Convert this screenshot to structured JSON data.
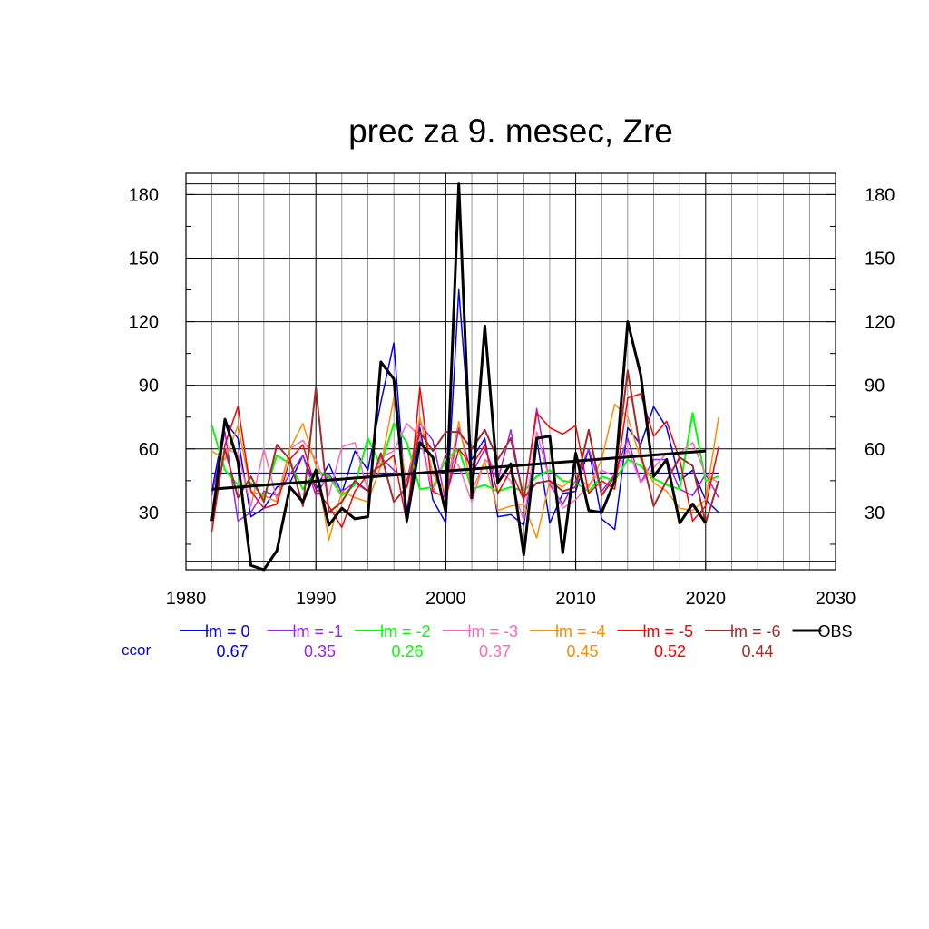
{
  "chart_data": {
    "type": "line",
    "title": "prec za 9. mesec, Zre",
    "xlabel": "",
    "ylabel": "",
    "xlim": [
      1980,
      2030
    ],
    "ylim": [
      3,
      190
    ],
    "x_ticks": [
      1980,
      1990,
      2000,
      2010,
      2020,
      2030
    ],
    "y_ticks": [
      30,
      60,
      90,
      120,
      150,
      180
    ],
    "grid": true,
    "legend_position": "bottom",
    "ccor_label": "ccor",
    "x": [
      1982,
      1983,
      1984,
      1985,
      1986,
      1987,
      1988,
      1989,
      1990,
      1991,
      1992,
      1993,
      1994,
      1995,
      1996,
      1997,
      1998,
      1999,
      2000,
      2001,
      2002,
      2003,
      2004,
      2005,
      2006,
      2007,
      2008,
      2009,
      2010,
      2011,
      2012,
      2013,
      2014,
      2015,
      2016,
      2017,
      2018,
      2019,
      2020,
      2021
    ],
    "series": [
      {
        "name": "lm = 0",
        "ccor": "0.67",
        "color": "#0000ff",
        "width": 1.5,
        "values": [
          40,
          73,
          65,
          28,
          32,
          42,
          44,
          57,
          41,
          53,
          39,
          59,
          50,
          82,
          110,
          30,
          70,
          36,
          25,
          135,
          55,
          65,
          28,
          29,
          24,
          65,
          25,
          39,
          40,
          60,
          27,
          22,
          70,
          62,
          80,
          70,
          45,
          50,
          36,
          30
        ],
        "baseline": {
          "x": [
            1982,
            2021
          ],
          "y": [
            48.5,
            48.5
          ]
        }
      },
      {
        "name": "lm = -1",
        "ccor": "0.35",
        "color": "#a020f0",
        "width": 1.5,
        "values": [
          38,
          68,
          26,
          30,
          40,
          38,
          48,
          57,
          38,
          48,
          40,
          44,
          40,
          56,
          50,
          45,
          72,
          64,
          35,
          70,
          48,
          60,
          45,
          69,
          35,
          79,
          43,
          34,
          45,
          60,
          40,
          48,
          65,
          44,
          55,
          55,
          41,
          38,
          48,
          37
        ]
      },
      {
        "name": "lm = -2",
        "ccor": "0.26",
        "color": "#00ff00",
        "width": 2,
        "values": [
          71,
          50,
          43,
          44,
          37,
          57,
          53,
          41,
          50,
          47,
          38,
          43,
          65,
          52,
          72,
          63,
          41,
          42,
          55,
          60,
          41,
          43,
          40,
          42,
          40,
          47,
          50,
          45,
          44,
          40,
          47,
          45,
          55,
          52,
          46,
          43,
          41,
          77,
          45,
          47
        ]
      },
      {
        "name": "lm = -3",
        "ccor": "0.37",
        "color": "#ff69b4",
        "width": 1.5,
        "values": [
          32,
          60,
          58,
          33,
          60,
          36,
          60,
          64,
          55,
          38,
          61,
          63,
          40,
          56,
          59,
          72,
          66,
          39,
          58,
          52,
          35,
          55,
          50,
          45,
          26,
          68,
          45,
          32,
          36,
          43,
          50,
          47,
          60,
          44,
          51,
          58,
          58,
          63,
          48,
          44
        ]
      },
      {
        "name": "lm = -4",
        "ccor": "0.45",
        "color": "#ff8c00",
        "width": 1.5,
        "values": [
          59,
          55,
          71,
          40,
          38,
          35,
          60,
          72,
          52,
          17,
          40,
          37,
          35,
          52,
          84,
          42,
          75,
          48,
          40,
          73,
          40,
          54,
          31,
          33,
          34,
          18,
          45,
          42,
          48,
          42,
          55,
          81,
          75,
          55,
          44,
          40,
          32,
          31,
          36,
          75
        ]
      },
      {
        "name": "lm = -5",
        "ccor": "0.52",
        "color": "#ff0000",
        "width": 1.5,
        "values": [
          21,
          62,
          80,
          40,
          32,
          34,
          55,
          62,
          41,
          33,
          23,
          40,
          48,
          52,
          57,
          25,
          89,
          40,
          37,
          60,
          52,
          62,
          39,
          50,
          36,
          77,
          70,
          67,
          71,
          39,
          45,
          41,
          84,
          86,
          66,
          73,
          55,
          26,
          33,
          61
        ]
      },
      {
        "name": "lm = -6",
        "ccor": "0.44",
        "color": "#a52a2a",
        "width": 2,
        "values": [
          26,
          60,
          37,
          47,
          35,
          62,
          55,
          33,
          89,
          30,
          35,
          45,
          40,
          58,
          35,
          42,
          68,
          59,
          68,
          68,
          60,
          69,
          55,
          65,
          37,
          44,
          45,
          40,
          42,
          69,
          38,
          47,
          97,
          58,
          33,
          45,
          56,
          52,
          25,
          45
        ]
      },
      {
        "name": "OBS",
        "ccor": "",
        "color": "#000000",
        "width": 3,
        "values": [
          26,
          74,
          54,
          5,
          3,
          12,
          42,
          35,
          50,
          24,
          32,
          27,
          28,
          101,
          93,
          26,
          63,
          56,
          30,
          185,
          37,
          118,
          44,
          53,
          10,
          65,
          66,
          11,
          58,
          31,
          30,
          45,
          120,
          95,
          47,
          55,
          25,
          34,
          25,
          null
        ],
        "trend": {
          "x": [
            1982,
            2020
          ],
          "y": [
            41,
            59
          ]
        }
      }
    ]
  }
}
